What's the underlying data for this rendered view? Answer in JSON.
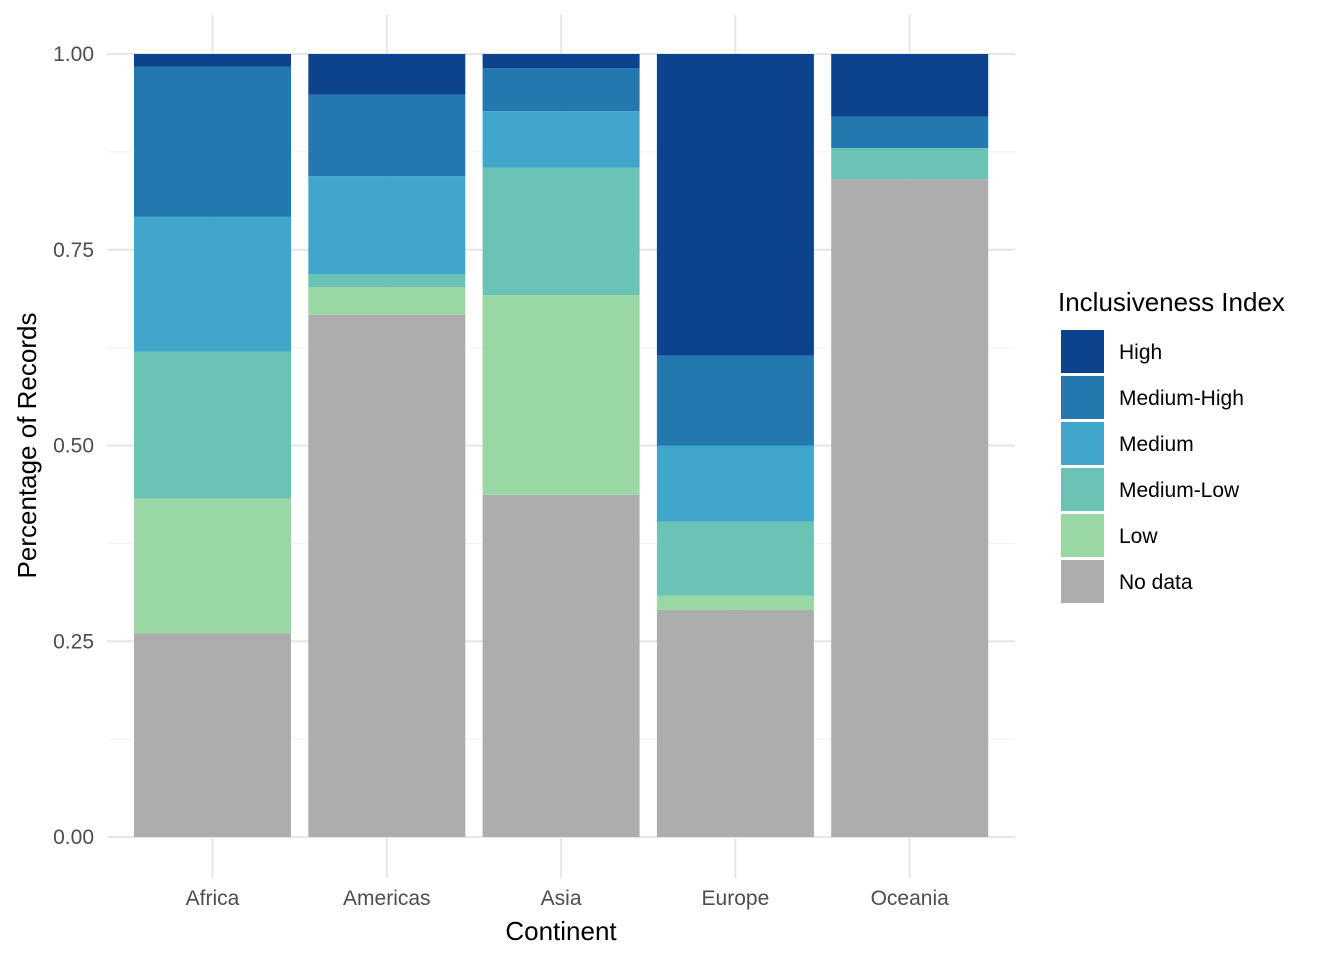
{
  "chart_data": {
    "type": "bar",
    "stacked": true,
    "title": "",
    "xlabel": "Continent",
    "ylabel": "Percentage of Records",
    "ylim": [
      0,
      1
    ],
    "yticks": [
      "0.00",
      "0.25",
      "0.50",
      "0.75",
      "1.00"
    ],
    "grid": true,
    "legend_title": "Inclusiveness Index",
    "legend_position": "right",
    "categories": [
      "Africa",
      "Americas",
      "Asia",
      "Europe",
      "Oceania"
    ],
    "series": [
      {
        "name": "No data",
        "color": "#ADADAD",
        "values": [
          0.26,
          0.667,
          0.437,
          0.29,
          0.84
        ]
      },
      {
        "name": "Low",
        "color": "#99D8A5",
        "values": [
          0.172,
          0.035,
          0.255,
          0.018,
          0.0
        ]
      },
      {
        "name": "Medium-Low",
        "color": "#6BC3B6",
        "values": [
          0.188,
          0.017,
          0.163,
          0.095,
          0.04
        ]
      },
      {
        "name": "Medium",
        "color": "#41A6CB",
        "values": [
          0.172,
          0.125,
          0.072,
          0.097,
          0.0
        ]
      },
      {
        "name": "Medium-High",
        "color": "#2378B0",
        "values": [
          0.192,
          0.104,
          0.055,
          0.115,
          0.04
        ]
      },
      {
        "name": "High",
        "color": "#0D438D",
        "values": [
          0.016,
          0.052,
          0.018,
          0.385,
          0.08
        ]
      }
    ],
    "legend_order": [
      "High",
      "Medium-High",
      "Medium",
      "Medium-Low",
      "Low",
      "No data"
    ]
  }
}
